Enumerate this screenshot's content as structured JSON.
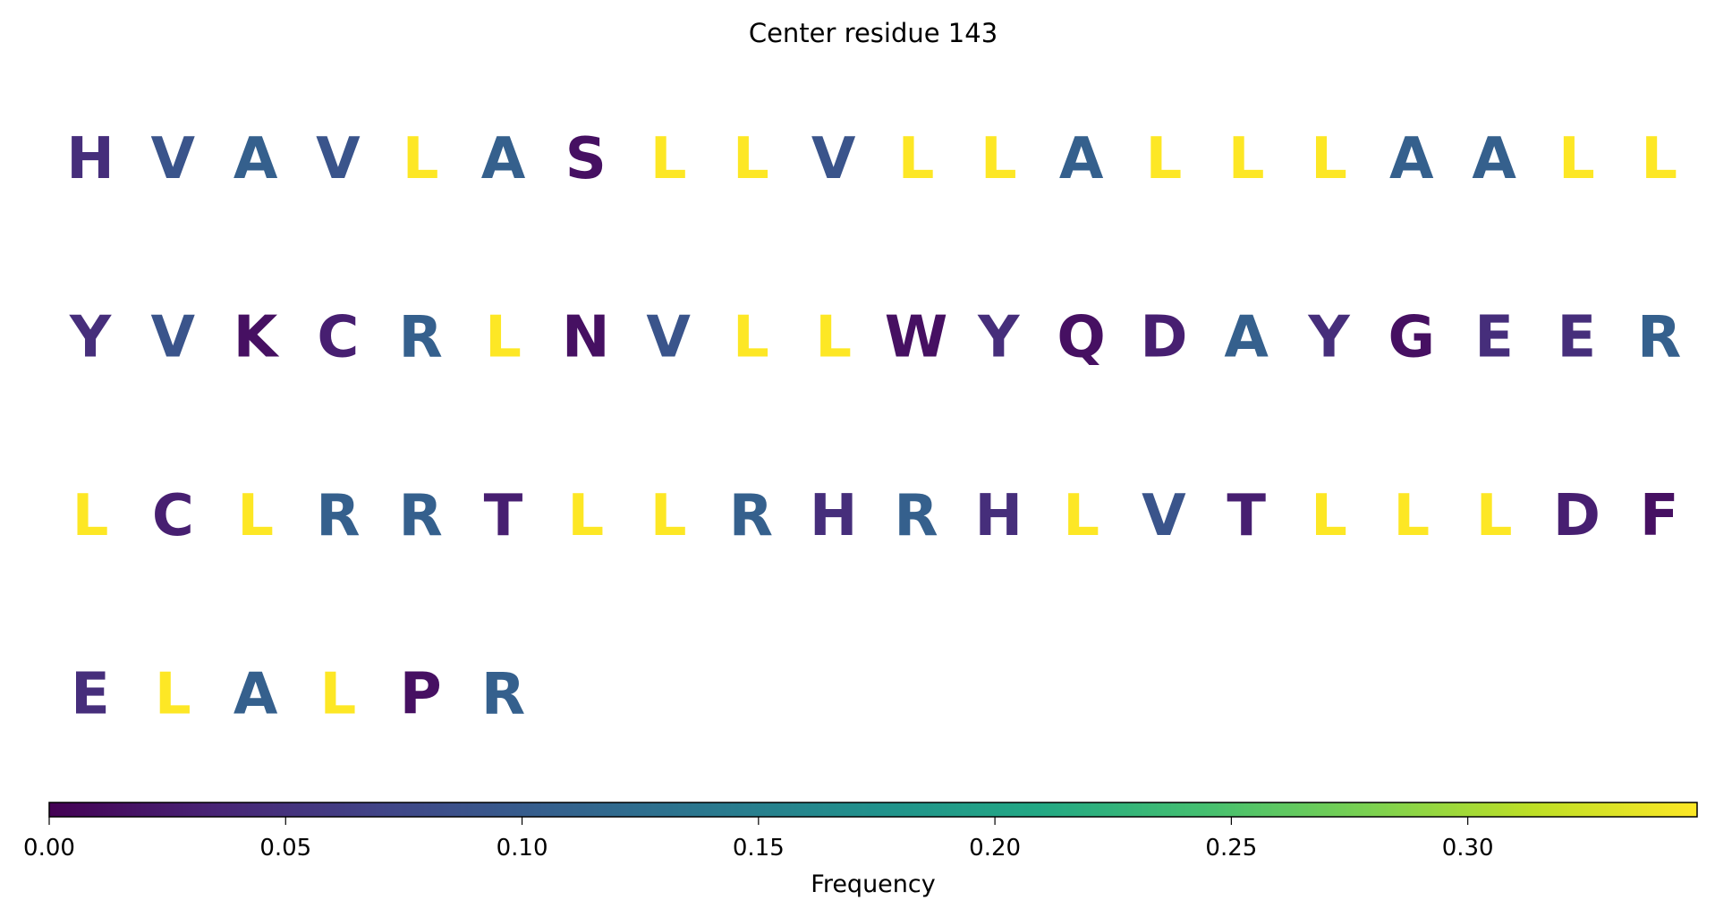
{
  "chart_data": {
    "type": "heatmap",
    "title": "Center residue 143",
    "colorbar_label": "Frequency",
    "colormap": "viridis",
    "vmin": 0.0,
    "vmax": 0.3485,
    "colorbar_ticks": [
      "0.00",
      "0.05",
      "0.10",
      "0.15",
      "0.20",
      "0.25",
      "0.30"
    ],
    "letters_per_row": 20,
    "sequence": [
      "H",
      "V",
      "A",
      "V",
      "L",
      "A",
      "S",
      "L",
      "L",
      "V",
      "L",
      "L",
      "A",
      "L",
      "L",
      "L",
      "A",
      "A",
      "L",
      "L",
      "Y",
      "V",
      "K",
      "C",
      "R",
      "L",
      "N",
      "V",
      "L",
      "L",
      "W",
      "Y",
      "Q",
      "D",
      "A",
      "Y",
      "G",
      "E",
      "E",
      "R",
      "L",
      "C",
      "L",
      "R",
      "R",
      "T",
      "L",
      "L",
      "R",
      "H",
      "R",
      "H",
      "L",
      "V",
      "T",
      "L",
      "L",
      "L",
      "D",
      "F",
      "E",
      "L",
      "A",
      "L",
      "P",
      "R"
    ],
    "frequencies": {
      "L": 0.3485,
      "A": 0.1061,
      "R": 0.1061,
      "V": 0.0909,
      "H": 0.0455,
      "Y": 0.0455,
      "E": 0.0455,
      "C": 0.0303,
      "D": 0.0303,
      "T": 0.0303,
      "S": 0.0152,
      "K": 0.0152,
      "N": 0.0152,
      "W": 0.0152,
      "Q": 0.0152,
      "G": 0.0152,
      "F": 0.0152,
      "P": 0.0152
    }
  }
}
